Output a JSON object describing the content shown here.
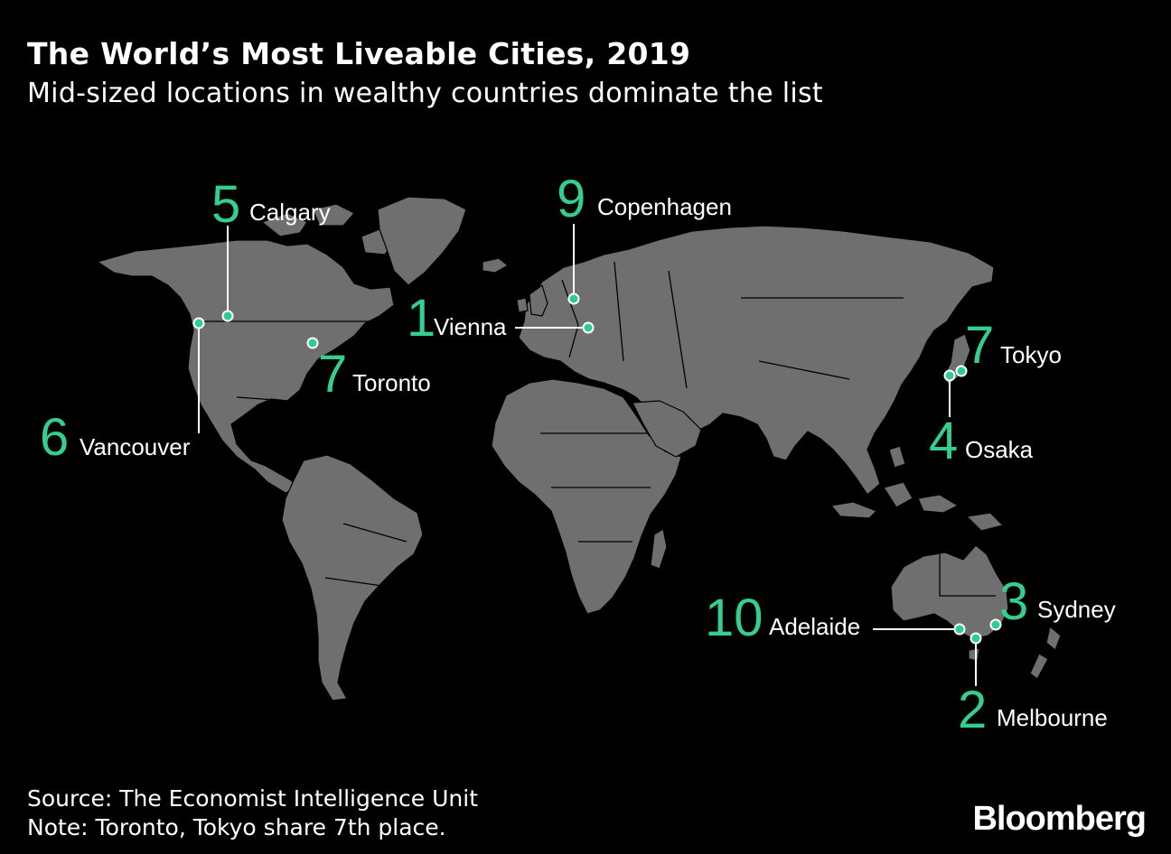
{
  "header": {
    "title": "The World’s Most Liveable Cities, 2019",
    "subtitle": "Mid-sized locations in wealthy countries dominate the list"
  },
  "colors": {
    "background": "#000000",
    "land": "#6f6f6f",
    "accent": "#34cf8e",
    "text": "#ffffff"
  },
  "cities": [
    {
      "rank": "1",
      "name": "Vienna"
    },
    {
      "rank": "2",
      "name": "Melbourne"
    },
    {
      "rank": "3",
      "name": "Sydney"
    },
    {
      "rank": "4",
      "name": "Osaka"
    },
    {
      "rank": "5",
      "name": "Calgary"
    },
    {
      "rank": "6",
      "name": "Vancouver"
    },
    {
      "rank": "7",
      "name": "Tokyo"
    },
    {
      "rank": "7",
      "name": "Toronto"
    },
    {
      "rank": "9",
      "name": "Copenhagen"
    },
    {
      "rank": "10",
      "name": "Adelaide"
    }
  ],
  "footer": {
    "source": "Source: The Economist Intelligence Unit",
    "note": "Note: Toronto, Tokyo share 7th place."
  },
  "brand": "Bloomberg"
}
